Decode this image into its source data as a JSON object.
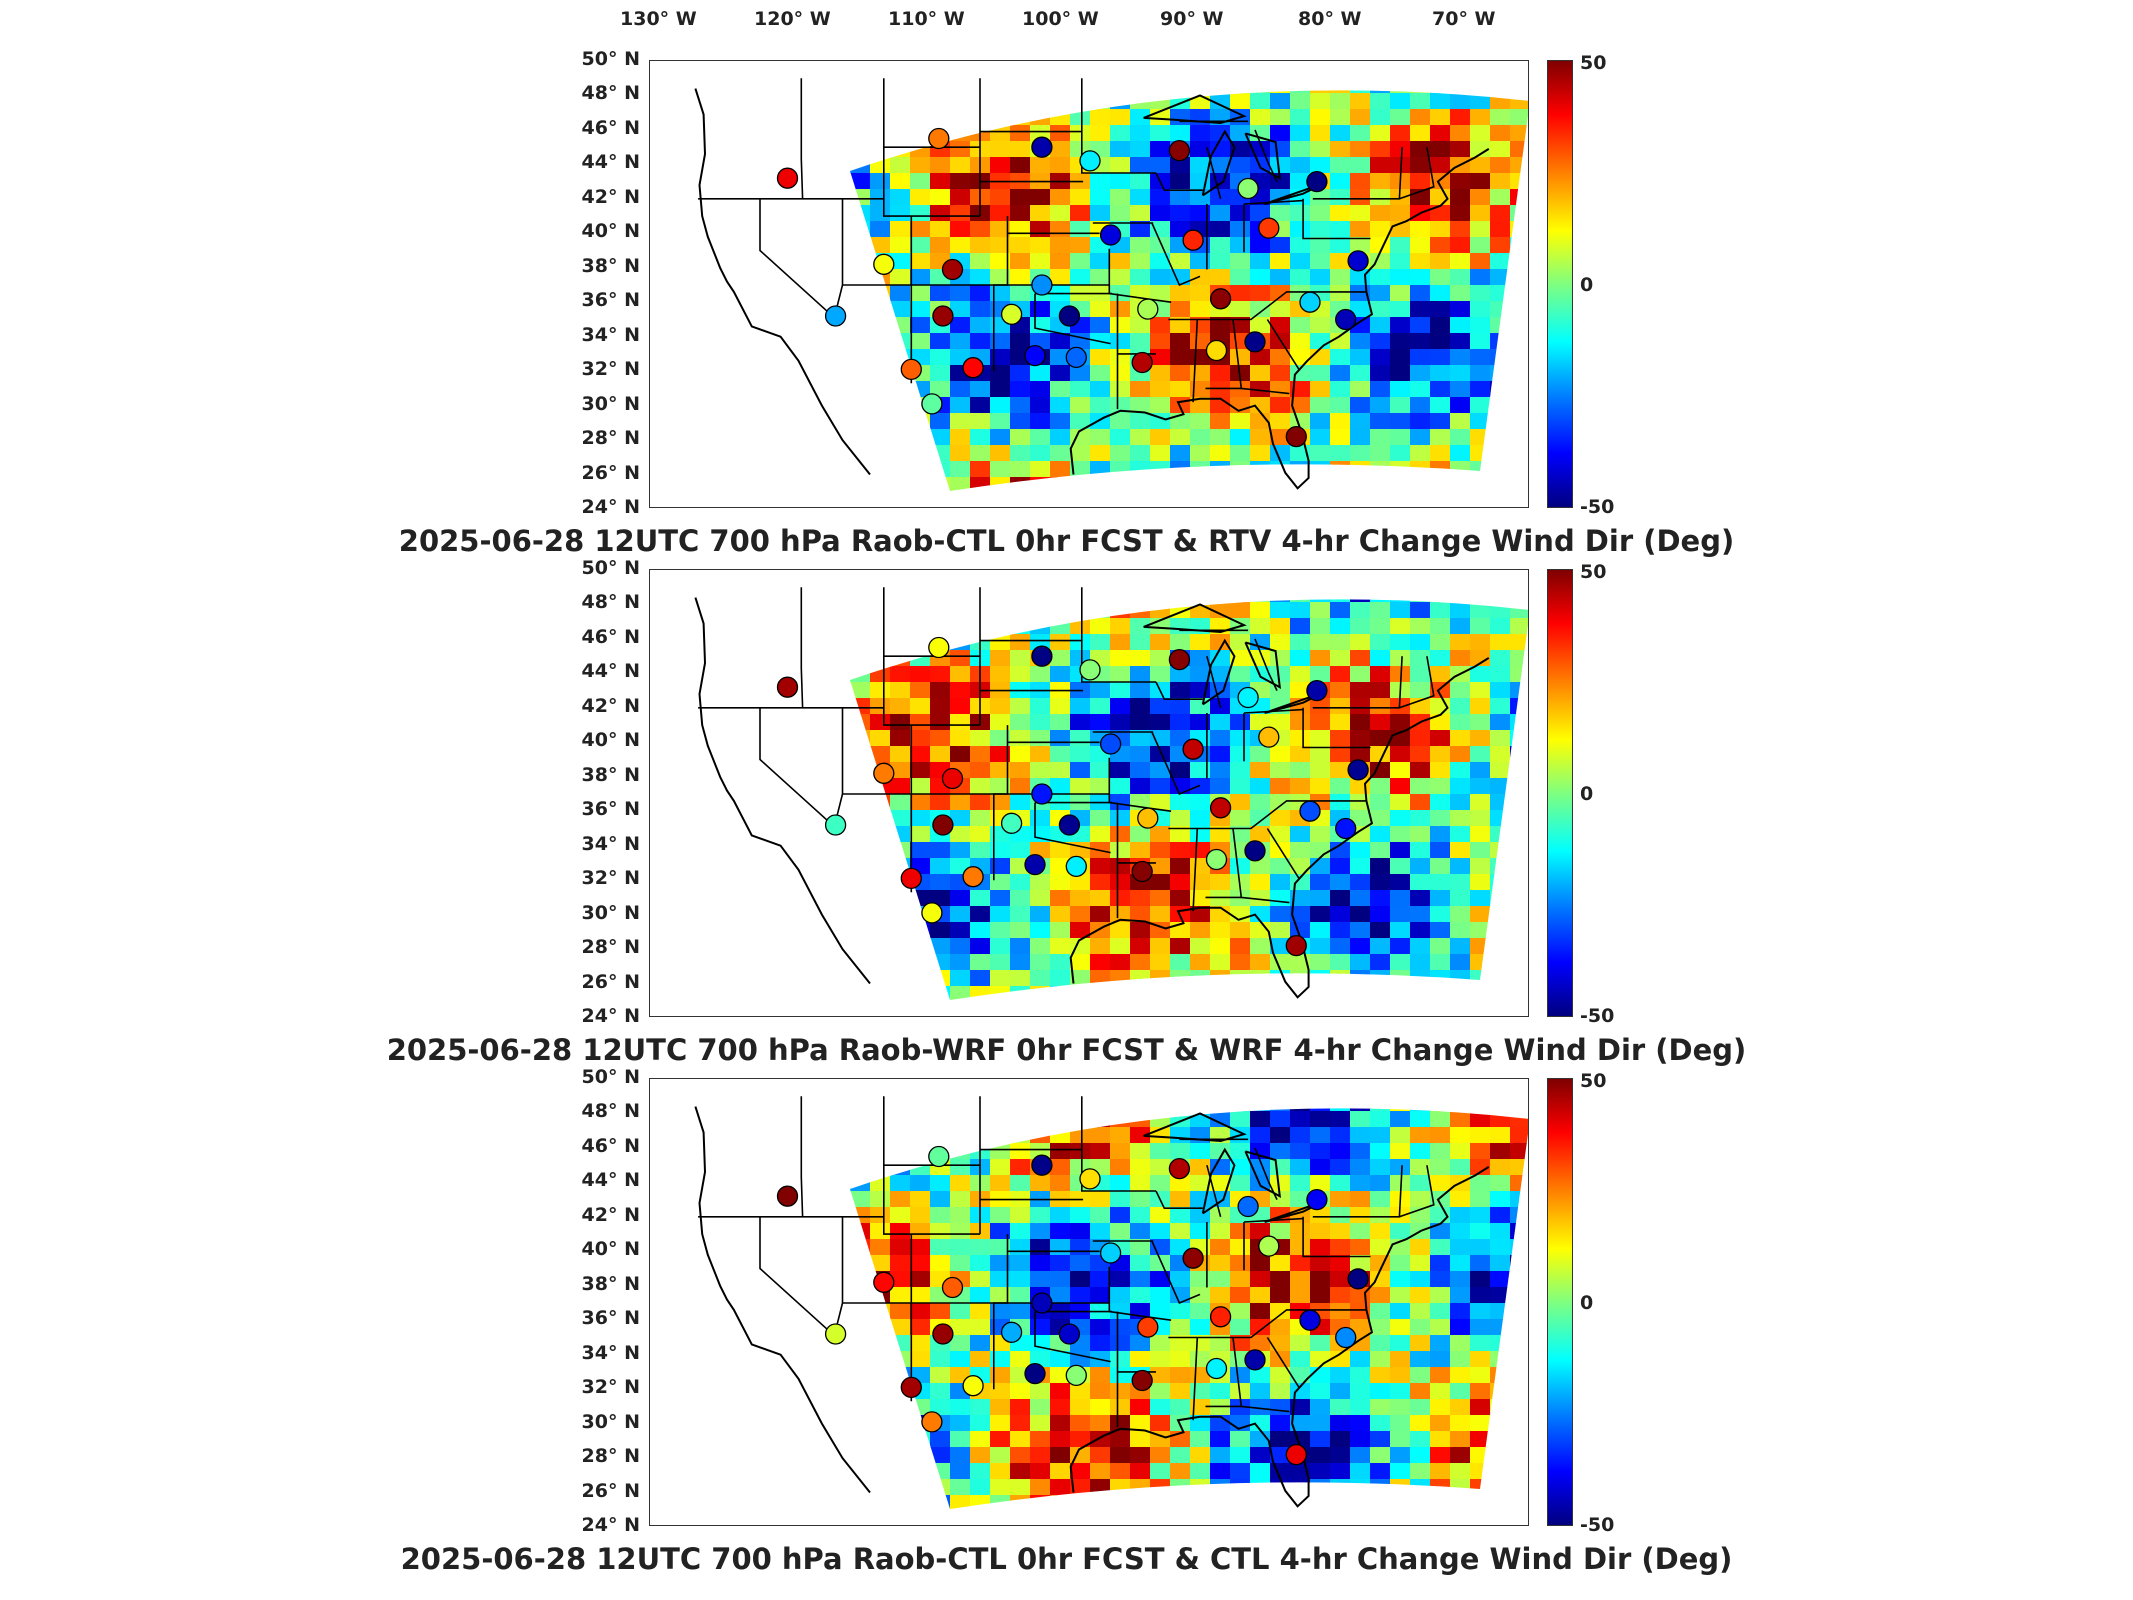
{
  "lon_ticks": [
    "130° W",
    "120° W",
    "110° W",
    "100° W",
    "90° W",
    "80° W",
    "70° W"
  ],
  "lat_ticks": [
    "50° N",
    "48° N",
    "46° N",
    "44° N",
    "42° N",
    "40° N",
    "38° N",
    "36° N",
    "34° N",
    "32° N",
    "30° N",
    "28° N",
    "26° N",
    "24° N"
  ],
  "colorbar": {
    "max": "50",
    "mid": "0",
    "min": "-50",
    "colormap": "jet"
  },
  "panels": [
    {
      "title": "2025-06-28 12UTC 700 hPa Raob-CTL 0hr FCST & RTV 4-hr Change Wind Dir (Deg)"
    },
    {
      "title": "2025-06-28 12UTC 700 hPa Raob-WRF 0hr FCST & WRF 4-hr Change Wind Dir (Deg)"
    },
    {
      "title": "2025-06-28 12UTC 700 hPa Raob-CTL 0hr FCST & CTL 4-hr Change Wind Dir (Deg)"
    }
  ]
}
